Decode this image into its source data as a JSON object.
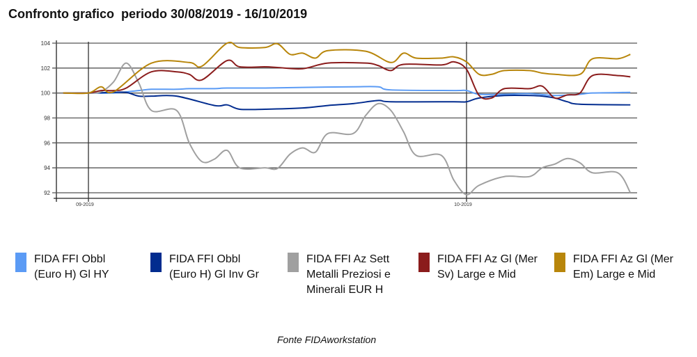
{
  "title": "Confronto grafico  periodo 30/08/2019 - 16/10/2019",
  "source": "Fonte FIDAworkstation",
  "chart_data": {
    "type": "line",
    "title": "Confronto grafico  periodo 30/08/2019 - 16/10/2019",
    "xlabel": "",
    "ylabel": "",
    "ylim": [
      92,
      104
    ],
    "yticks": [
      92,
      94,
      96,
      98,
      100,
      102,
      104
    ],
    "xticks": [
      {
        "date": "2019-09-01",
        "label": "09-2019"
      },
      {
        "date": "2019-10-01",
        "label": "10-2019"
      }
    ],
    "grid": "horizontal",
    "legend_position": "bottom",
    "series": [
      {
        "name": "FIDA FFI Obbl (Euro H) Gl HY",
        "color": "#5b9bf5",
        "points": [
          [
            "2019-08-30",
            100
          ],
          [
            "2019-09-01",
            100
          ],
          [
            "2019-09-03",
            100
          ],
          [
            "2019-09-05",
            100.2
          ],
          [
            "2019-09-06",
            100.3
          ],
          [
            "2019-09-08",
            100.3
          ],
          [
            "2019-09-09",
            100.35
          ],
          [
            "2019-09-11",
            100.35
          ],
          [
            "2019-09-12",
            100.4
          ],
          [
            "2019-09-15",
            100.4
          ],
          [
            "2019-09-18",
            100.45
          ],
          [
            "2019-09-22",
            100.5
          ],
          [
            "2019-09-24",
            100.5
          ],
          [
            "2019-09-25",
            100.25
          ],
          [
            "2019-09-30",
            100.2
          ],
          [
            "2019-10-01",
            100.2
          ],
          [
            "2019-10-02",
            99.9
          ],
          [
            "2019-10-04",
            99.9
          ],
          [
            "2019-10-06",
            99.95
          ],
          [
            "2019-10-08",
            99.8
          ],
          [
            "2019-10-10",
            99.9
          ],
          [
            "2019-10-11",
            100.0
          ],
          [
            "2019-10-14",
            100.05
          ]
        ]
      },
      {
        "name": "FIDA FFI Obbl (Euro H) Gl Inv Gr",
        "color": "#022c8f",
        "points": [
          [
            "2019-08-30",
            100
          ],
          [
            "2019-09-01",
            100
          ],
          [
            "2019-09-03",
            100.05
          ],
          [
            "2019-09-04",
            100.05
          ],
          [
            "2019-09-05",
            99.75
          ],
          [
            "2019-09-06",
            99.75
          ],
          [
            "2019-09-08",
            99.75
          ],
          [
            "2019-09-11",
            99.0
          ],
          [
            "2019-09-12",
            99.05
          ],
          [
            "2019-09-13",
            98.7
          ],
          [
            "2019-09-15",
            98.7
          ],
          [
            "2019-09-18",
            98.8
          ],
          [
            "2019-09-20",
            99.0
          ],
          [
            "2019-09-22",
            99.15
          ],
          [
            "2019-09-24",
            99.4
          ],
          [
            "2019-09-25",
            99.3
          ],
          [
            "2019-09-30",
            99.3
          ],
          [
            "2019-10-01",
            99.3
          ],
          [
            "2019-10-02",
            99.6
          ],
          [
            "2019-10-04",
            99.8
          ],
          [
            "2019-10-06",
            99.8
          ],
          [
            "2019-10-07",
            99.75
          ],
          [
            "2019-10-08",
            99.6
          ],
          [
            "2019-10-09",
            99.3
          ],
          [
            "2019-10-10",
            99.1
          ],
          [
            "2019-10-14",
            99.05
          ]
        ]
      },
      {
        "name": "FIDA FFI Az Sett Metalli Preziosi e Minerali EUR H",
        "color": "#a0a0a0",
        "points": [
          [
            "2019-08-30",
            100
          ],
          [
            "2019-09-01",
            100
          ],
          [
            "2019-09-02",
            100.1
          ],
          [
            "2019-09-03",
            100.9
          ],
          [
            "2019-09-04",
            102.4
          ],
          [
            "2019-09-05",
            100.8
          ],
          [
            "2019-09-06",
            98.6
          ],
          [
            "2019-09-08",
            98.6
          ],
          [
            "2019-09-09",
            96.0
          ],
          [
            "2019-09-10",
            94.5
          ],
          [
            "2019-09-11",
            94.7
          ],
          [
            "2019-09-12",
            95.4
          ],
          [
            "2019-09-13",
            94.0
          ],
          [
            "2019-09-15",
            94.0
          ],
          [
            "2019-09-16",
            93.95
          ],
          [
            "2019-09-17",
            95.1
          ],
          [
            "2019-09-18",
            95.6
          ],
          [
            "2019-09-19",
            95.25
          ],
          [
            "2019-09-20",
            96.75
          ],
          [
            "2019-09-22",
            96.75
          ],
          [
            "2019-09-23",
            98.2
          ],
          [
            "2019-09-24",
            99.15
          ],
          [
            "2019-09-25",
            98.6
          ],
          [
            "2019-09-26",
            96.9
          ],
          [
            "2019-09-27",
            95.0
          ],
          [
            "2019-09-29",
            95.0
          ],
          [
            "2019-09-30",
            93.0
          ],
          [
            "2019-10-01",
            91.85
          ],
          [
            "2019-10-02",
            92.6
          ],
          [
            "2019-10-04",
            93.3
          ],
          [
            "2019-10-06",
            93.3
          ],
          [
            "2019-10-07",
            94.0
          ],
          [
            "2019-10-08",
            94.3
          ],
          [
            "2019-10-09",
            94.75
          ],
          [
            "2019-10-10",
            94.4
          ],
          [
            "2019-10-11",
            93.6
          ],
          [
            "2019-10-13",
            93.6
          ],
          [
            "2019-10-14",
            92.0
          ]
        ]
      },
      {
        "name": "FIDA FFI Az Gl (Mer Sv) Large e Mid",
        "color": "#8b1c1c",
        "points": [
          [
            "2019-08-30",
            100
          ],
          [
            "2019-09-01",
            100
          ],
          [
            "2019-09-02",
            100.2
          ],
          [
            "2019-09-03",
            100.2
          ],
          [
            "2019-09-04",
            100.4
          ],
          [
            "2019-09-06",
            101.7
          ],
          [
            "2019-09-08",
            101.7
          ],
          [
            "2019-09-09",
            101.5
          ],
          [
            "2019-09-10",
            101.05
          ],
          [
            "2019-09-12",
            102.6
          ],
          [
            "2019-09-13",
            102.1
          ],
          [
            "2019-09-15",
            102.1
          ],
          [
            "2019-09-16",
            102.05
          ],
          [
            "2019-09-18",
            101.95
          ],
          [
            "2019-09-20",
            102.4
          ],
          [
            "2019-09-23",
            102.4
          ],
          [
            "2019-09-24",
            102.2
          ],
          [
            "2019-09-25",
            101.8
          ],
          [
            "2019-09-26",
            102.3
          ],
          [
            "2019-09-29",
            102.25
          ],
          [
            "2019-09-30",
            102.5
          ],
          [
            "2019-10-01",
            101.9
          ],
          [
            "2019-10-02",
            99.8
          ],
          [
            "2019-10-03",
            99.6
          ],
          [
            "2019-10-04",
            100.35
          ],
          [
            "2019-10-06",
            100.35
          ],
          [
            "2019-10-07",
            100.55
          ],
          [
            "2019-10-08",
            99.6
          ],
          [
            "2019-10-09",
            99.85
          ],
          [
            "2019-10-10",
            100.0
          ],
          [
            "2019-10-11",
            101.4
          ],
          [
            "2019-10-13",
            101.4
          ],
          [
            "2019-10-14",
            101.3
          ]
        ]
      },
      {
        "name": "FIDA FFI Az Gl (Mer Em) Large e Mid",
        "color": "#b8860b",
        "points": [
          [
            "2019-08-30",
            100
          ],
          [
            "2019-09-01",
            100
          ],
          [
            "2019-09-02",
            100.5
          ],
          [
            "2019-09-03",
            100.1
          ],
          [
            "2019-09-06",
            102.4
          ],
          [
            "2019-09-09",
            102.45
          ],
          [
            "2019-09-10",
            102.15
          ],
          [
            "2019-09-12",
            104.0
          ],
          [
            "2019-09-13",
            103.65
          ],
          [
            "2019-09-15",
            103.65
          ],
          [
            "2019-09-16",
            103.95
          ],
          [
            "2019-09-17",
            103.1
          ],
          [
            "2019-09-18",
            103.2
          ],
          [
            "2019-09-19",
            102.8
          ],
          [
            "2019-09-20",
            103.4
          ],
          [
            "2019-09-23",
            103.35
          ],
          [
            "2019-09-25",
            102.45
          ],
          [
            "2019-09-26",
            103.2
          ],
          [
            "2019-09-27",
            102.8
          ],
          [
            "2019-09-29",
            102.8
          ],
          [
            "2019-09-30",
            102.9
          ],
          [
            "2019-10-01",
            102.5
          ],
          [
            "2019-10-02",
            101.5
          ],
          [
            "2019-10-03",
            101.5
          ],
          [
            "2019-10-04",
            101.8
          ],
          [
            "2019-10-06",
            101.8
          ],
          [
            "2019-10-07",
            101.6
          ],
          [
            "2019-10-08",
            101.5
          ],
          [
            "2019-10-10",
            101.5
          ],
          [
            "2019-10-11",
            102.75
          ],
          [
            "2019-10-13",
            102.75
          ],
          [
            "2019-10-14",
            103.1
          ]
        ]
      }
    ]
  }
}
